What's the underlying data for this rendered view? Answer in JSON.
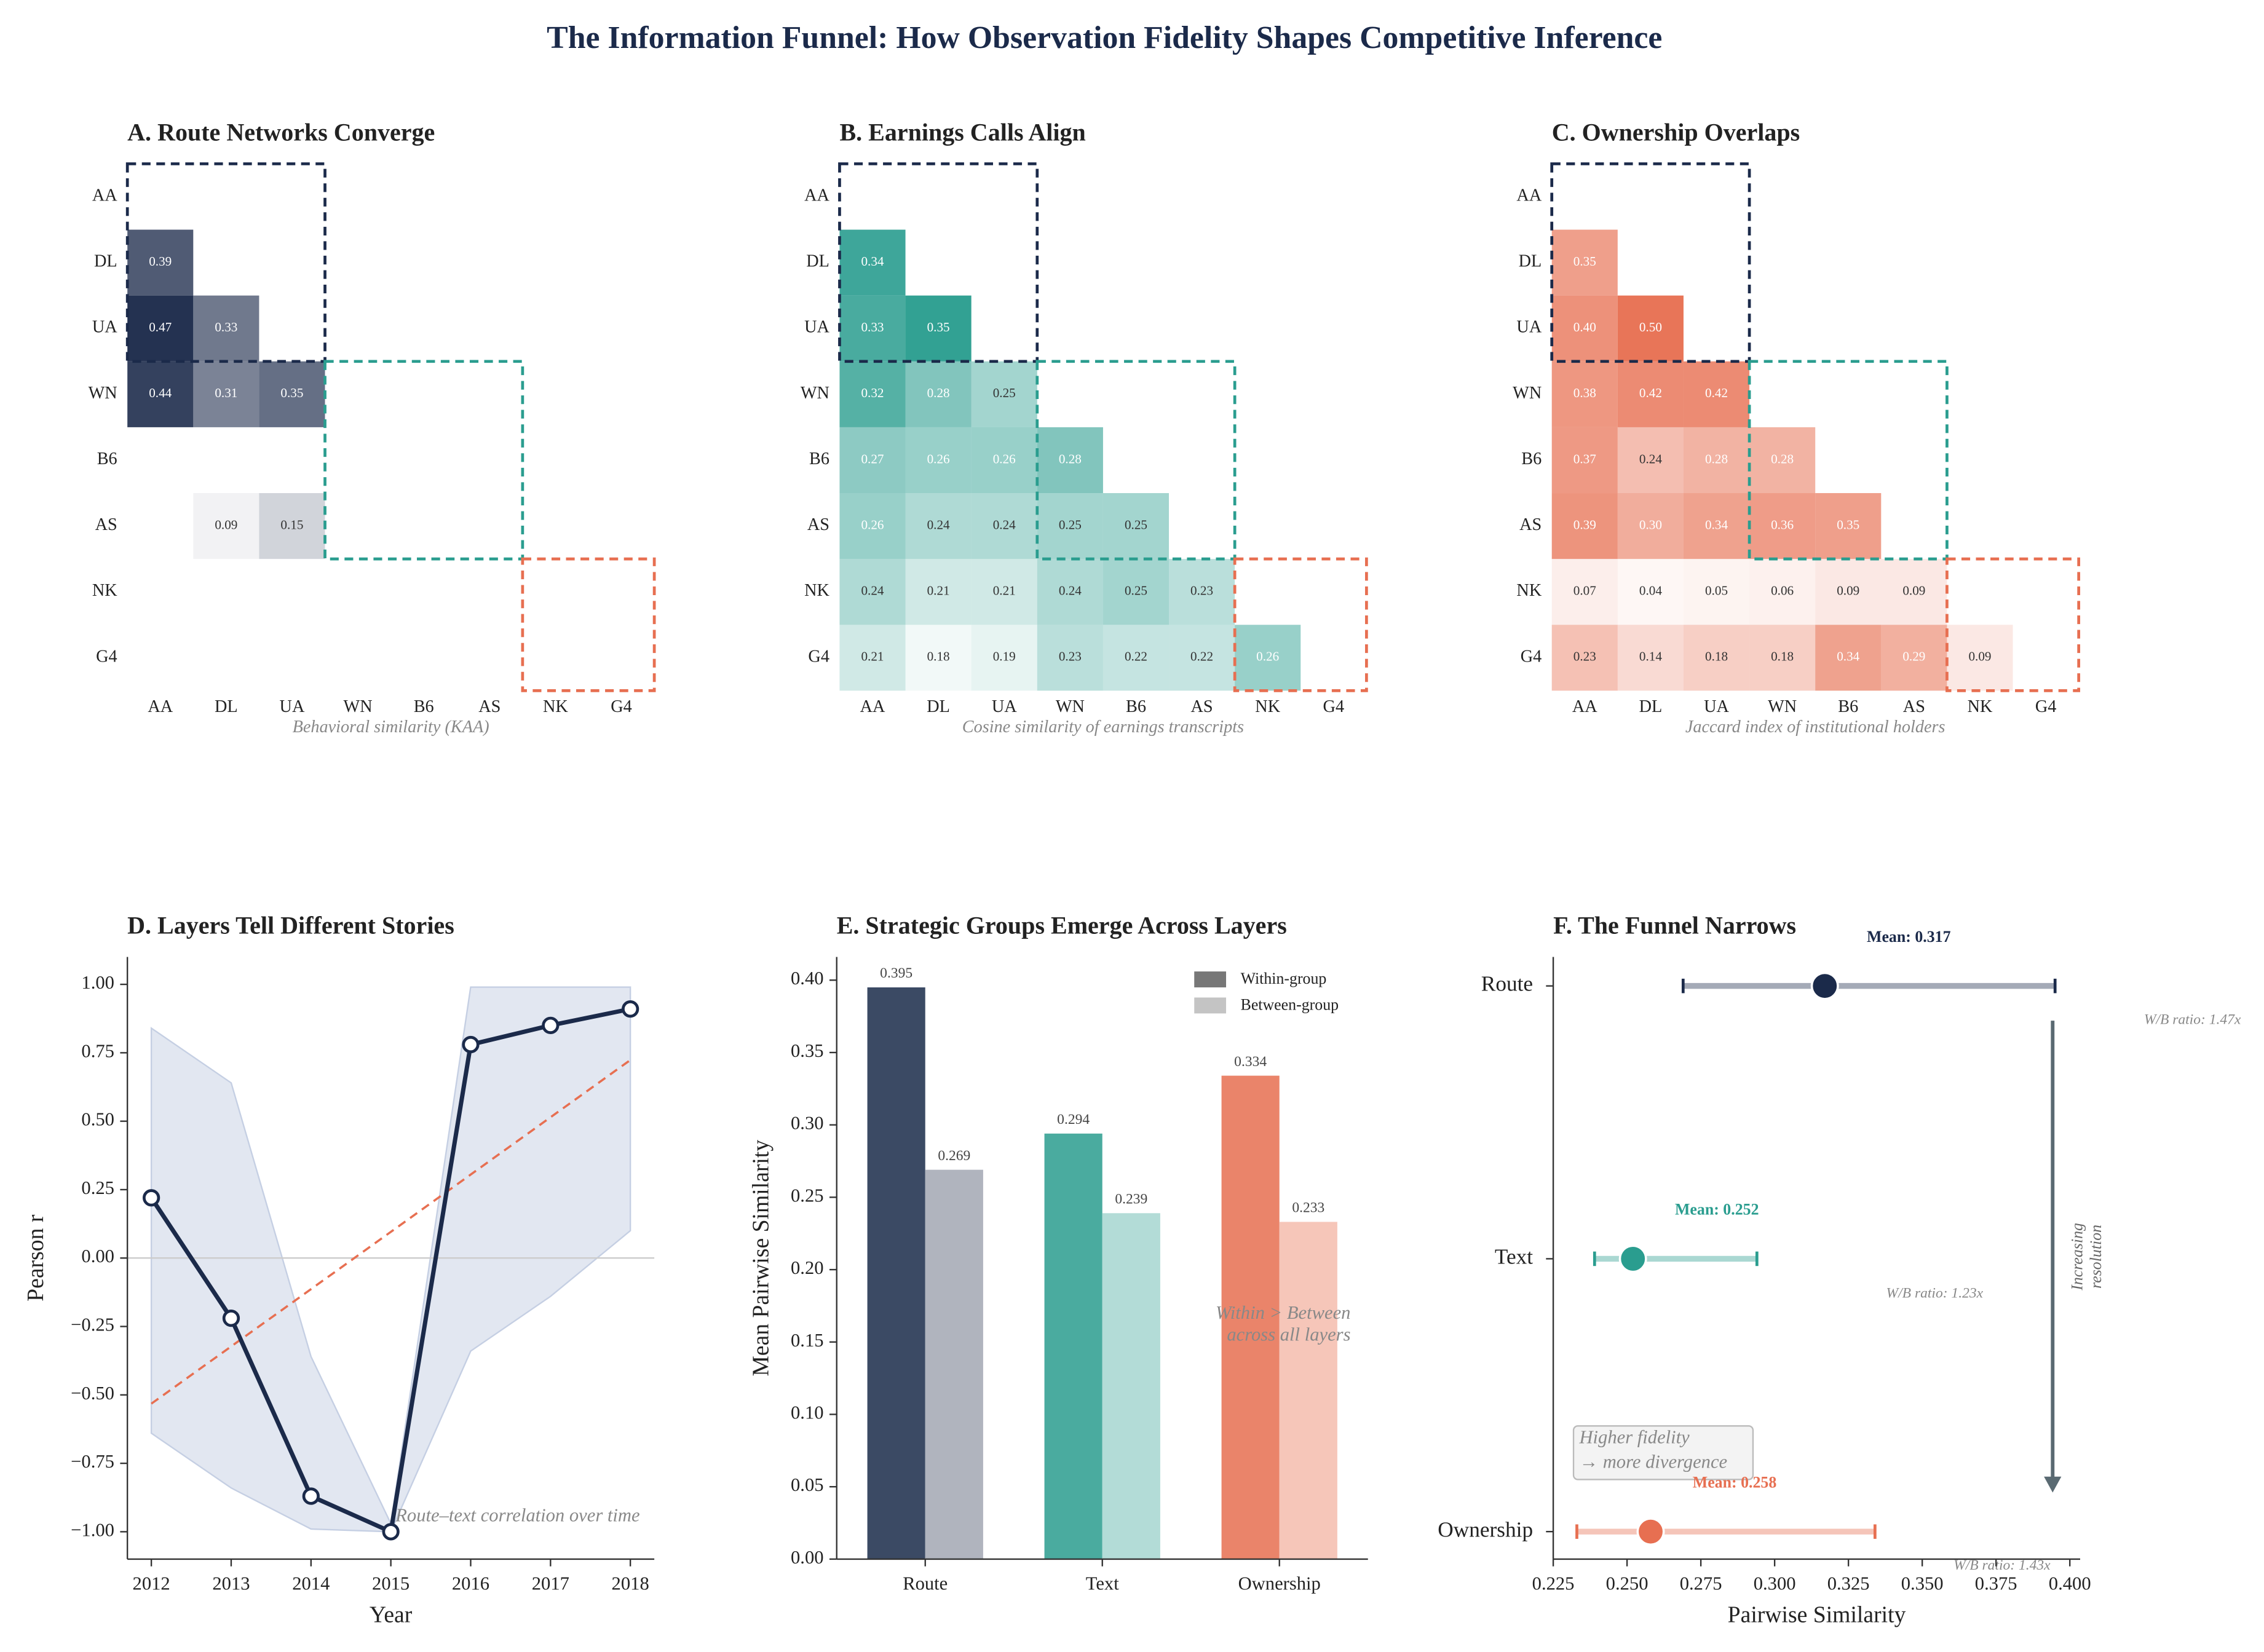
{
  "title": "The Information Funnel: How Observation Fidelity Shapes Competitive Inference",
  "chart_data": [
    {
      "type": "heatmap",
      "title": "A. Route Networks Converge",
      "xlabel": "Behavioral similarity (KAA)",
      "color": "#1b2a4a",
      "categories": [
        "AA",
        "DL",
        "UA",
        "WN",
        "B6",
        "AS",
        "NK",
        "G4"
      ],
      "values": [
        [
          null,
          null,
          null,
          null,
          null,
          null,
          null,
          null
        ],
        [
          0.39,
          null,
          null,
          null,
          null,
          null,
          null,
          null
        ],
        [
          0.47,
          0.33,
          null,
          null,
          null,
          null,
          null,
          null
        ],
        [
          0.44,
          0.31,
          0.35,
          null,
          null,
          null,
          null,
          null
        ],
        [
          null,
          null,
          null,
          null,
          null,
          null,
          null,
          null
        ],
        [
          null,
          0.09,
          0.15,
          null,
          null,
          null,
          null,
          null
        ],
        [
          null,
          null,
          null,
          null,
          null,
          null,
          null,
          null
        ],
        [
          null,
          null,
          null,
          null,
          null,
          null,
          null,
          null
        ]
      ],
      "groups": [
        {
          "members": [
            "AA",
            "DL",
            "UA"
          ],
          "color": "#1b2a4a"
        },
        {
          "members": [
            "WN",
            "B6",
            "AS"
          ],
          "color": "#2a9d8f"
        },
        {
          "members": [
            "NK",
            "G4"
          ],
          "color": "#e76f51"
        }
      ]
    },
    {
      "type": "heatmap",
      "title": "B. Earnings Calls Align",
      "xlabel": "Cosine similarity of earnings transcripts",
      "color": "#2a9d8f",
      "categories": [
        "AA",
        "DL",
        "UA",
        "WN",
        "B6",
        "AS",
        "NK",
        "G4"
      ],
      "values": [
        [
          null,
          null,
          null,
          null,
          null,
          null,
          null,
          null
        ],
        [
          0.34,
          null,
          null,
          null,
          null,
          null,
          null,
          null
        ],
        [
          0.33,
          0.35,
          null,
          null,
          null,
          null,
          null,
          null
        ],
        [
          0.32,
          0.28,
          0.25,
          null,
          null,
          null,
          null,
          null
        ],
        [
          0.27,
          0.26,
          0.26,
          0.28,
          null,
          null,
          null,
          null
        ],
        [
          0.26,
          0.24,
          0.24,
          0.25,
          0.25,
          null,
          null,
          null
        ],
        [
          0.24,
          0.21,
          0.21,
          0.24,
          0.25,
          0.23,
          null,
          null
        ],
        [
          0.21,
          0.18,
          0.19,
          0.23,
          0.22,
          0.22,
          0.26,
          null
        ]
      ],
      "groups": [
        {
          "members": [
            "AA",
            "DL",
            "UA"
          ],
          "color": "#1b2a4a"
        },
        {
          "members": [
            "WN",
            "B6",
            "AS"
          ],
          "color": "#2a9d8f"
        },
        {
          "members": [
            "NK",
            "G4"
          ],
          "color": "#e76f51"
        }
      ]
    },
    {
      "type": "heatmap",
      "title": "C. Ownership Overlaps",
      "xlabel": "Jaccard index of institutional holders",
      "color": "#e76f51",
      "categories": [
        "AA",
        "DL",
        "UA",
        "WN",
        "B6",
        "AS",
        "NK",
        "G4"
      ],
      "values": [
        [
          null,
          null,
          null,
          null,
          null,
          null,
          null,
          null
        ],
        [
          0.35,
          null,
          null,
          null,
          null,
          null,
          null,
          null
        ],
        [
          0.4,
          0.5,
          null,
          null,
          null,
          null,
          null,
          null
        ],
        [
          0.38,
          0.42,
          0.42,
          null,
          null,
          null,
          null,
          null
        ],
        [
          0.37,
          0.24,
          0.28,
          0.28,
          null,
          null,
          null,
          null
        ],
        [
          0.39,
          0.3,
          0.34,
          0.36,
          0.35,
          null,
          null,
          null
        ],
        [
          0.07,
          0.04,
          0.05,
          0.06,
          0.09,
          0.09,
          null,
          null
        ],
        [
          0.23,
          0.14,
          0.18,
          0.18,
          0.34,
          0.29,
          0.09,
          null
        ]
      ],
      "value_labels": [
        [
          null,
          null,
          null,
          null,
          null,
          null,
          null,
          null
        ],
        [
          "0.35",
          null,
          null,
          null,
          null,
          null,
          null,
          null
        ],
        [
          "0.40",
          "0.50",
          null,
          null,
          null,
          null,
          null,
          null
        ],
        [
          "0.38",
          "0.42",
          "0.42",
          null,
          null,
          null,
          null,
          null
        ],
        [
          "0.37",
          "0.24",
          "0.28",
          "0.28",
          null,
          null,
          null,
          null
        ],
        [
          "0.39",
          "0.30",
          "0.34",
          "0.36",
          "0.35",
          null,
          null,
          null
        ],
        [
          "0.07",
          "0.04",
          "0.05",
          "0.06",
          "0.09",
          "0.09",
          null,
          null
        ],
        [
          "0.23",
          "0.14",
          "0.18",
          "0.18",
          "0.34",
          "0.29",
          "0.09",
          null
        ]
      ],
      "groups": [
        {
          "members": [
            "AA",
            "DL",
            "UA"
          ],
          "color": "#1b2a4a"
        },
        {
          "members": [
            "WN",
            "B6",
            "AS"
          ],
          "color": "#2a9d8f"
        },
        {
          "members": [
            "NK",
            "G4"
          ],
          "color": "#e76f51"
        }
      ]
    },
    {
      "type": "line",
      "title": "D. Layers Tell Different Stories",
      "xlabel": "Year",
      "ylabel": "Pearson r",
      "x": [
        2012,
        2013,
        2014,
        2015,
        2016,
        2017,
        2018
      ],
      "series": [
        {
          "color": "#1b2a4a",
          "values": [
            0.22,
            -0.22,
            -0.87,
            -1.0,
            0.78,
            0.85,
            0.91
          ]
        }
      ],
      "band": {
        "color": "#c5cfe3",
        "upper": [
          0.84,
          0.64,
          -0.36,
          -0.97,
          0.99,
          0.99,
          0.99
        ],
        "lower": [
          -0.64,
          -0.84,
          -0.99,
          -1.0,
          -0.34,
          -0.14,
          0.1
        ]
      },
      "trendline": {
        "color": "#e76f51"
      },
      "zero_line": true,
      "xlim": [
        2011.7,
        2018.3
      ],
      "ylim": [
        -1.1,
        1.1
      ],
      "xticks": [
        2012,
        2013,
        2014,
        2015,
        2016,
        2017,
        2018
      ],
      "yticks": [
        {
          "value": -1,
          "label": "−1.00"
        },
        {
          "value": -0.75,
          "label": "−0.75"
        },
        {
          "value": -0.5,
          "label": "−0.50"
        },
        {
          "value": -0.25,
          "label": "−0.25"
        },
        {
          "value": 0,
          "label": "0.00"
        },
        0.25,
        {
          "value": 0.5,
          "label": "0.50"
        },
        0.75,
        {
          "value": 1,
          "label": "1.00"
        }
      ],
      "annotation": "Route–text correlation over time"
    },
    {
      "type": "grouped_bar",
      "title": "E. Strategic Groups Emerge Across Layers",
      "ylabel": "Mean Pairwise Similarity",
      "categories": [
        "Route",
        "Text",
        "Ownership"
      ],
      "series": [
        {
          "name": "Within-group",
          "color": "#777777",
          "bar_colors": [
            "#3b4a64",
            "#4aab9f",
            "#ea846a"
          ],
          "values": [
            0.395,
            0.294,
            0.334
          ]
        },
        {
          "name": "Between-group",
          "color": "#c4c4c4",
          "bar_colors": [
            "#b0b4be",
            "#b3dcd7",
            "#f6c6b9"
          ],
          "values": [
            0.269,
            0.239,
            0.233
          ]
        }
      ],
      "ylim": [
        0,
        0.416
      ],
      "yticks": [
        {
          "value": 0,
          "label": "0.00"
        },
        0.05,
        {
          "value": 0.1,
          "label": "0.10"
        },
        0.15,
        {
          "value": 0.2,
          "label": "0.20"
        },
        0.25,
        {
          "value": 0.3,
          "label": "0.30"
        },
        0.35,
        {
          "value": 0.4,
          "label": "0.40"
        }
      ],
      "legend": "upper right",
      "annotation": [
        "Within > Between",
        "across all layers"
      ]
    },
    {
      "type": "range_dot",
      "title": "F. The Funnel Narrows",
      "xlabel": "Pairwise Similarity",
      "categories": [
        "Route",
        "Text",
        "Ownership"
      ],
      "colors": [
        "#1b2a4a",
        "#2a9d8f",
        "#e76f51"
      ],
      "values": [
        0.317,
        0.252,
        0.258
      ],
      "value_labels": [
        "Mean: 0.317",
        "Mean: 0.252",
        "Mean: 0.258"
      ],
      "low": [
        0.269,
        0.239,
        0.233
      ],
      "high": [
        0.395,
        0.294,
        0.334
      ],
      "ratio_labels": [
        "W/B ratio: 1.47x",
        "W/B ratio: 1.23x",
        "W/B ratio: 1.43x"
      ],
      "xlim": [
        0.225,
        0.4035
      ],
      "xticks": [
        0.225,
        {
          "value": 0.25,
          "label": "0.250"
        },
        0.275,
        {
          "value": 0.3,
          "label": "0.300"
        },
        0.325,
        {
          "value": 0.35,
          "label": "0.350"
        },
        0.375,
        {
          "value": 0.4,
          "label": "0.400"
        }
      ],
      "arrow_label": [
        "Increasing",
        "resolution"
      ],
      "callout": [
        "Higher fidelity",
        "→ more divergence"
      ]
    }
  ]
}
